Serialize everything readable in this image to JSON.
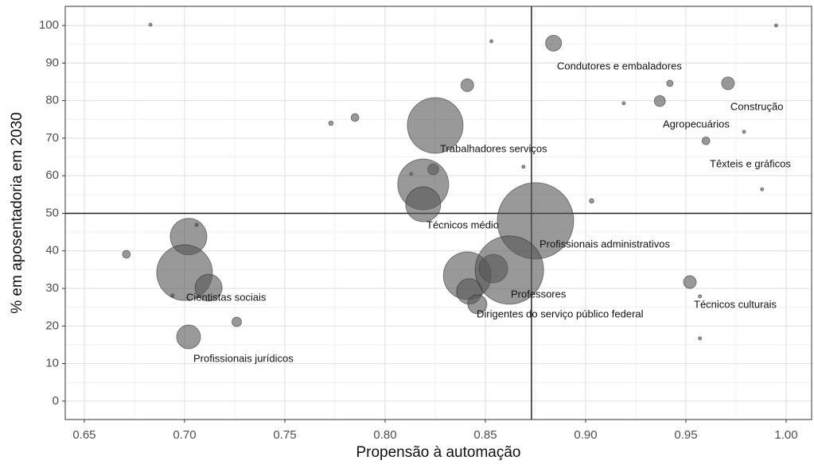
{
  "chart_data": {
    "type": "bubble",
    "x_label": "Propensão à automação",
    "y_label": "% em aposentadoria em 2030",
    "x": [
      0.683,
      0.853,
      0.884,
      0.995,
      0.841,
      0.919,
      0.937,
      0.942,
      0.971,
      0.773,
      0.785,
      0.825,
      0.96,
      0.979,
      0.813,
      0.824,
      0.869,
      0.819,
      0.819,
      0.903,
      0.988,
      0.875,
      0.671,
      0.702,
      0.706,
      0.7,
      0.712,
      0.694,
      0.726,
      0.702,
      0.841,
      0.854,
      0.862,
      0.842,
      0.846,
      0.952,
      0.957,
      0.957
    ],
    "values": [
      100.2,
      95.8,
      95.3,
      100,
      84.1,
      79.3,
      79.9,
      84.6,
      84.6,
      74,
      75.5,
      73.4,
      69.3,
      71.7,
      60.5,
      61.7,
      62.4,
      57.7,
      52.4,
      53.3,
      56.4,
      48,
      39.1,
      43.8,
      46.9,
      34.2,
      30.2,
      28.1,
      21.1,
      17.1,
      33.4,
      35.3,
      34.9,
      29.2,
      25.8,
      31.7,
      27.9,
      16.7
    ],
    "sizes": [
      1,
      1,
      25,
      1,
      16,
      1,
      12,
      4,
      16,
      2,
      6,
      306,
      6,
      1,
      1,
      12,
      1,
      256,
      121,
      2,
      1,
      576,
      6,
      132,
      1,
      306,
      72,
      1,
      9,
      56,
      225,
      81,
      462,
      64,
      36,
      16,
      1,
      1
    ],
    "color": "#555555",
    "annotations": [
      "Condutores e embaladores",
      "Construção",
      "Agropecuários",
      "Trabalhadores serviços",
      "Têxteis e gráficos",
      "Técnicos médio",
      "Profissionais administrativos",
      "Cientistas sociais",
      "Professores",
      "Dirigentes do serviço público federal",
      "Técnicos culturais",
      "Profissionais jurídicos"
    ],
    "vline": 0.873,
    "hline": 50,
    "xlim": [
      0.6405,
      1.0127
    ],
    "ylim": [
      -4.9,
      105.1
    ],
    "xticks": [
      0.65,
      {
        "value": 0.7,
        "label": "0.70"
      },
      0.75,
      {
        "value": 0.8,
        "label": "0.80"
      },
      0.85,
      {
        "value": 0.9,
        "label": "0.90"
      },
      0.95,
      {
        "value": 1.0,
        "label": "1.00"
      }
    ],
    "yticks": [
      0,
      10,
      20,
      30,
      40,
      50,
      60,
      70,
      80,
      90,
      100
    ],
    "grid": true
  }
}
